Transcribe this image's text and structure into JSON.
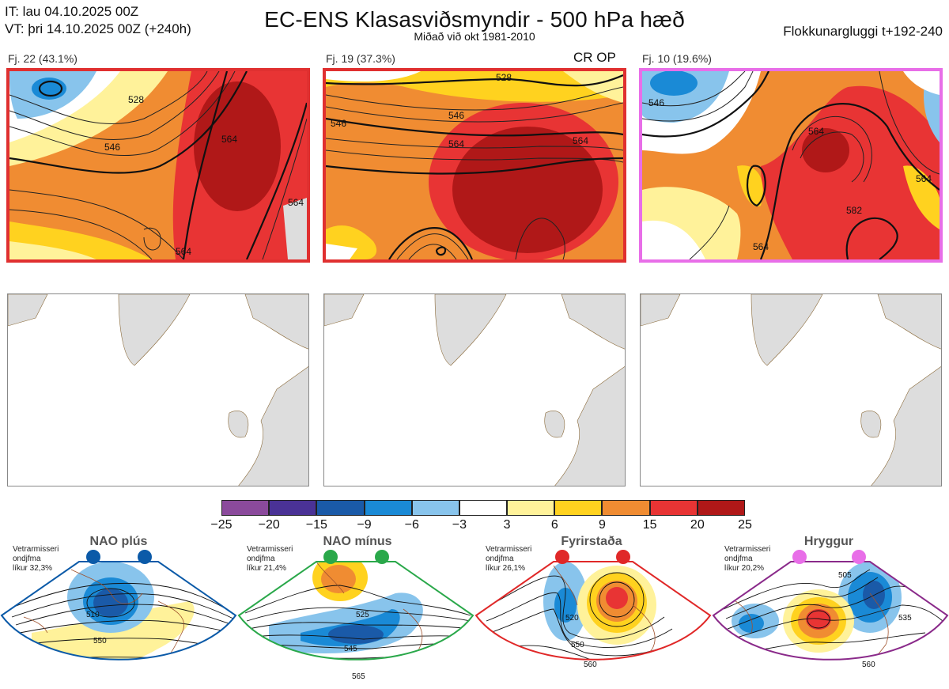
{
  "header": {
    "it": "IT: lau 04.10.2025 00Z",
    "vt": "VT: þri 14.10.2025 00Z  (+240h)",
    "title": "EC-ENS Klasasviðsmyndir - 500 hPa hæð",
    "subtitle": "Miðað við okt 1981-2010",
    "window": "Flokkunargluggi t+192-240"
  },
  "clusters": [
    {
      "label": "Fj. 22 (43.1%)",
      "border_color": "#e03030",
      "contours": [
        "528",
        "546",
        "564",
        "564",
        "564"
      ],
      "extra": ""
    },
    {
      "label": "Fj. 19 (37.3%)",
      "border_color": "#e03030",
      "contours": [
        "528",
        "546",
        "546",
        "564",
        "564"
      ],
      "extra": "CR OP"
    },
    {
      "label": "Fj. 10 (19.6%)",
      "border_color": "#e86ee8",
      "contours": [
        "546",
        "564",
        "564",
        "582",
        "564"
      ],
      "extra": ""
    }
  ],
  "chart_data": {
    "type": "heatmap",
    "title": "EC-ENS Klasasviðsmyndir - 500 hPa hæð",
    "colorbar": {
      "ticks": [
        "−25",
        "−20",
        "−15",
        "−9",
        "−6",
        "−3",
        "3",
        "6",
        "9",
        "15",
        "20",
        "25"
      ],
      "colors": [
        "#8b4a9c",
        "#4a3296",
        "#1a5aa8",
        "#1a8ad6",
        "#88c4ec",
        "#ffffff",
        "#fff29a",
        "#ffd21f",
        "#f08c32",
        "#e83434",
        "#b01818"
      ]
    }
  },
  "regimes": [
    {
      "name": "NAO plús",
      "note": [
        "Vetrarmisseri",
        "ondjfma",
        "líkur 32,3%"
      ],
      "color": "#0b5aa8",
      "labels": [
        "510",
        "550"
      ]
    },
    {
      "name": "NAO mínus",
      "note": [
        "Vetrarmisseri",
        "ondjfma",
        "líkur 21,4%"
      ],
      "color": "#2aa84a",
      "labels": [
        "525",
        "545",
        "565"
      ]
    },
    {
      "name": "Fyrirstaða",
      "note": [
        "Vetrarmisseri",
        "ondjfma",
        "líkur 26,1%"
      ],
      "color": "#e02828",
      "labels": [
        "520",
        "550",
        "560"
      ]
    },
    {
      "name": "Hryggur",
      "note": [
        "Vetrarmisseri",
        "ondjfma",
        "líkur 20,2%"
      ],
      "color": "#e86ee8",
      "labels": [
        "505",
        "535",
        "560"
      ]
    }
  ]
}
